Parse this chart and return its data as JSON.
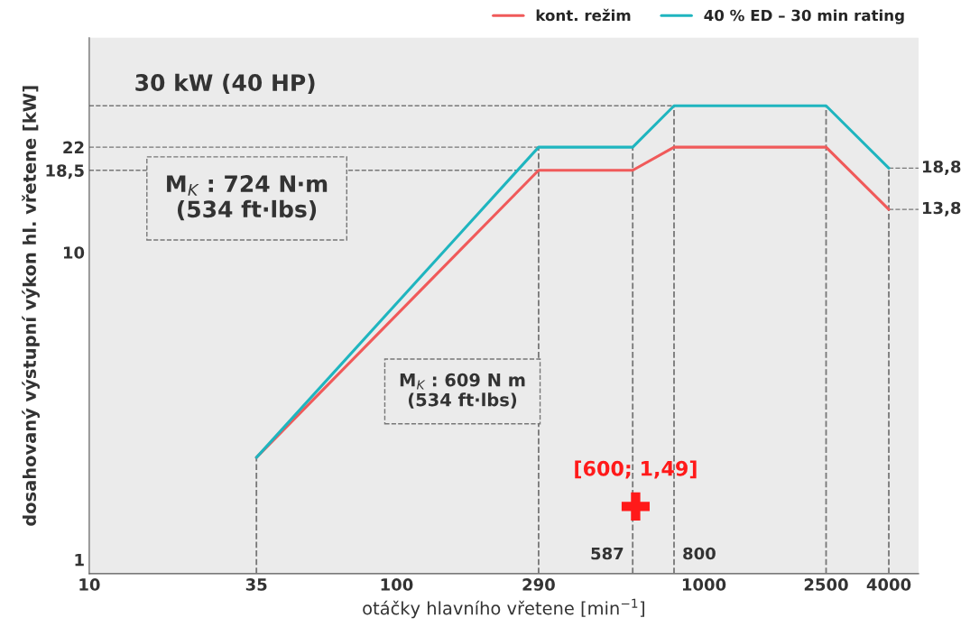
{
  "chart_data": {
    "type": "line",
    "xlabel": "otáčky hlavního vřetene [min$^{−1}$]",
    "ylabel": "dosahovaný výstupní výkon hl. vřetene [kW]",
    "log": "xy",
    "xlim": [
      10,
      5000
    ],
    "ylim": [
      0.9,
      50
    ],
    "xticks": [
      10,
      35,
      100,
      290,
      1000,
      2500,
      4000
    ],
    "yticks": [
      1,
      10,
      {
        "value": 18.5,
        "label": "18,5"
      },
      22
    ],
    "legend": "top right",
    "line_style": "solid",
    "marker": "none",
    "series": [
      {
        "name": "kont. režim",
        "color": "#f05a5a",
        "x": [
          35,
          290,
          587,
          800,
          2500,
          4000
        ],
        "values": [
          2.15,
          18.5,
          18.5,
          22,
          22,
          13.8
        ]
      },
      {
        "name": "40 % ED – 30 min rating",
        "color": "#1fb5bf",
        "x": [
          35,
          290,
          587,
          800,
          2500,
          4000
        ],
        "values": [
          2.15,
          22,
          22,
          30,
          30,
          18.8
        ]
      },
      {
        "type": "scatter",
        "marker": "cross",
        "color": "#ff1a1a",
        "x": [
          600
        ],
        "values": [
          1.49
        ]
      }
    ],
    "ref_lines": [
      {
        "axis": "x",
        "value": 35,
        "color": "#777777",
        "line_style": "dashed"
      },
      {
        "axis": "x",
        "value": 290,
        "color": "#777777",
        "line_style": "dashed"
      },
      {
        "axis": "x",
        "value": 587,
        "color": "#777777",
        "line_style": "dashed"
      },
      {
        "axis": "x",
        "value": 800,
        "color": "#777777",
        "line_style": "dashed"
      },
      {
        "axis": "x",
        "value": 2500,
        "color": "#777777",
        "line_style": "dashed"
      },
      {
        "axis": "x",
        "value": 4000,
        "color": "#777777",
        "line_style": "dashed"
      },
      {
        "axis": "y",
        "value": 30,
        "label": "30 kW (40 HP)",
        "color": "#777777",
        "line_style": "dashed"
      },
      {
        "axis": "y",
        "value": 22,
        "color": "#777777",
        "line_style": "dashed"
      },
      {
        "axis": "y",
        "value": 18.5,
        "color": "#777777",
        "line_style": "dashed"
      },
      {
        "axis": "y",
        "value": 18.8,
        "label": "18,8",
        "color": "#777777",
        "line_style": "dashed"
      },
      {
        "axis": "y",
        "value": 13.8,
        "label": "13,8",
        "color": "#777777",
        "line_style": "dashed"
      }
    ],
    "annotations": [
      "587",
      "800",
      {
        "text": "[600; 1,49]",
        "x": 600,
        "y": 1.49
      },
      "M$_{K}$ : 724 N·m\n(534 ft·lbs)",
      "M$_{K}$ : 609 N m\n(534 ft·lbs)"
    ]
  }
}
